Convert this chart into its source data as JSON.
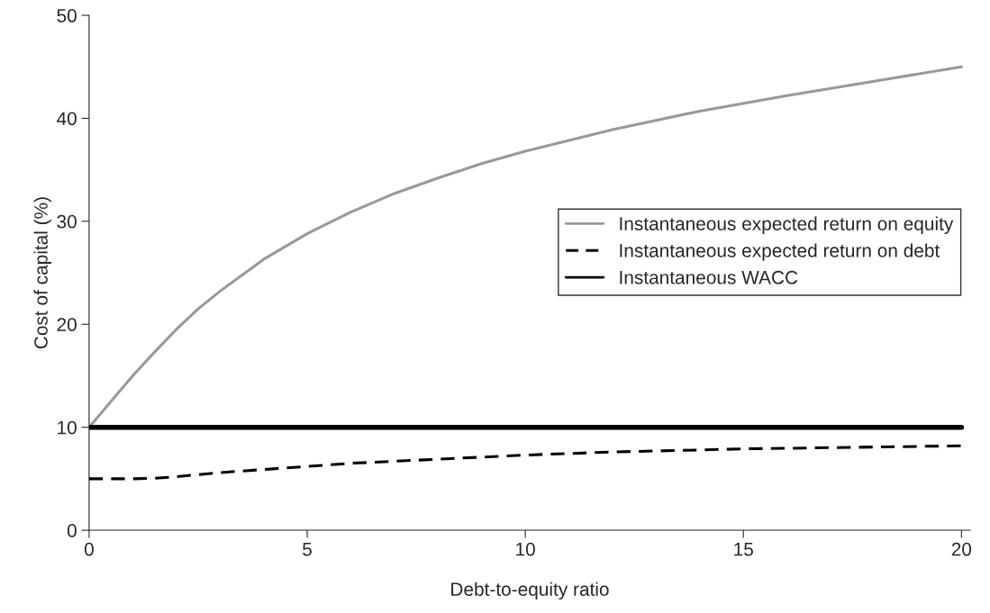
{
  "chart_data": {
    "type": "line",
    "xlabel": "Debt-to-equity ratio",
    "ylabel": "Cost of capital (%)",
    "xlim": [
      0,
      20.2
    ],
    "xticks": [
      0,
      5,
      10,
      15,
      20
    ],
    "ylim": [
      0,
      50
    ],
    "yticks": [
      0,
      10,
      20,
      30,
      40,
      50
    ],
    "grid": false,
    "legend": "right",
    "marker": "none",
    "series": [
      {
        "name": "Instantaneous expected return on equity",
        "color": "#999999",
        "line_style": "solid",
        "x": [
          0,
          0.5,
          1,
          1.5,
          2,
          2.5,
          3,
          4,
          5,
          6,
          7,
          8,
          9,
          10,
          12,
          14,
          16,
          18,
          20
        ],
        "values": [
          10,
          12.5,
          15,
          17.3,
          19.5,
          21.5,
          23.2,
          26.3,
          28.8,
          30.9,
          32.7,
          34.2,
          35.6,
          36.8,
          38.9,
          40.7,
          42.2,
          43.6,
          45
        ]
      },
      {
        "name": "Instantaneous expected return on debt",
        "color": "#000000",
        "line_style": "dashed",
        "x": [
          0,
          1,
          1.5,
          2,
          3,
          4,
          5,
          6,
          8,
          10,
          12,
          15,
          20
        ],
        "values": [
          5,
          5,
          5.05,
          5.2,
          5.6,
          5.9,
          6.2,
          6.5,
          6.9,
          7.3,
          7.6,
          7.9,
          8.2
        ]
      },
      {
        "name": "Instantaneous WACC",
        "color": "#000000",
        "line_style": "solid",
        "x": [
          0,
          20
        ],
        "values": [
          10,
          10
        ]
      }
    ]
  }
}
